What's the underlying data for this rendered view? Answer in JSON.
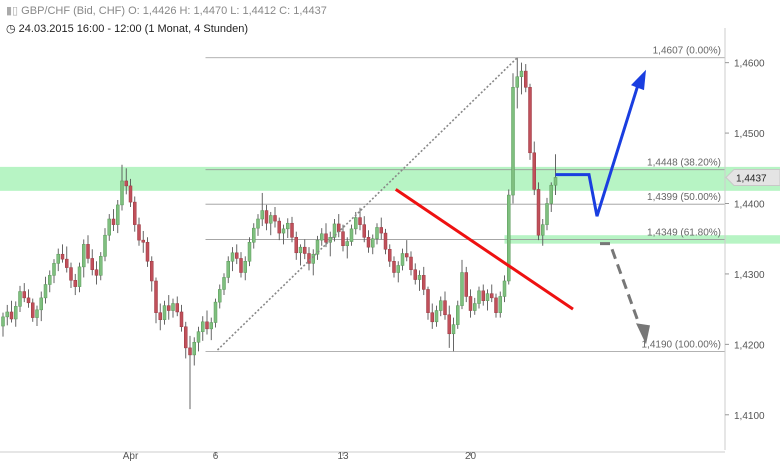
{
  "header": {
    "instrument_line": "GBP/CHF (Bid, CHF)  O: 1,4426  H: 1,4470  L: 1,4412  C: 1,4437",
    "period_line": "24.03.2015 16:00 - 12:00 (1 Monat, 4 Stunden)",
    "logo_icon": "candlestick-icon",
    "clock_icon": "clock-icon"
  },
  "current_price_label": "1,4437",
  "colors": {
    "bull": "#7fbf7f",
    "bear": "#c0505a",
    "wick": "#555555",
    "zone": "#9ff0b0",
    "trend": "#ee1111",
    "blue_arrow": "#1a3ee0",
    "grey_arrow": "#777777"
  },
  "chart_data": {
    "type": "candlestick",
    "ylim": [
      1.405,
      1.4635
    ],
    "y_ticks": [
      {
        "value": 1.41,
        "label": "1,4100"
      },
      {
        "value": 1.42,
        "label": "1,4200"
      },
      {
        "value": 1.43,
        "label": "1,4300"
      },
      {
        "value": 1.44,
        "label": "1,4400"
      },
      {
        "value": 1.45,
        "label": "1,4500"
      },
      {
        "value": 1.46,
        "label": "1,4600"
      }
    ],
    "x_ticks": [
      {
        "index": 30,
        "label": "Apr"
      },
      {
        "index": 50,
        "label": "6"
      },
      {
        "index": 80,
        "label": "13"
      },
      {
        "index": 110,
        "label": "20"
      }
    ],
    "fib_levels": [
      {
        "value": 1.4607,
        "label": "1,4607 (0.00%)"
      },
      {
        "value": 1.4448,
        "label": "1,4448 (38.20%)"
      },
      {
        "value": 1.4399,
        "label": "1,4399 (50.00%)"
      },
      {
        "value": 1.4349,
        "label": "1,4349 (61.80%)"
      },
      {
        "value": 1.419,
        "label": "1,4190 (100.00%)"
      }
    ],
    "zones": [
      {
        "from": 1.4418,
        "to": 1.4452,
        "extent": "full"
      },
      {
        "from": 1.4343,
        "to": 1.4355,
        "extent": "recent"
      }
    ],
    "candles": [
      [
        1.4226,
        1.4245,
        1.4211,
        1.4239
      ],
      [
        1.4239,
        1.4256,
        1.4227,
        1.4246
      ],
      [
        1.4246,
        1.4262,
        1.4231,
        1.4236
      ],
      [
        1.4236,
        1.4261,
        1.4225,
        1.4254
      ],
      [
        1.4254,
        1.4283,
        1.4246,
        1.4275
      ],
      [
        1.4275,
        1.4287,
        1.426,
        1.4266
      ],
      [
        1.4266,
        1.4278,
        1.4252,
        1.4259
      ],
      [
        1.4259,
        1.4265,
        1.4232,
        1.4238
      ],
      [
        1.4238,
        1.4255,
        1.4226,
        1.4249
      ],
      [
        1.4249,
        1.4275,
        1.4233,
        1.4266
      ],
      [
        1.4266,
        1.4296,
        1.4258,
        1.4285
      ],
      [
        1.4285,
        1.4305,
        1.4274,
        1.4298
      ],
      [
        1.4298,
        1.4321,
        1.4287,
        1.4315
      ],
      [
        1.4315,
        1.4336,
        1.4304,
        1.4328
      ],
      [
        1.4328,
        1.4342,
        1.4316,
        1.4321
      ],
      [
        1.4321,
        1.4339,
        1.4302,
        1.4309
      ],
      [
        1.4309,
        1.4316,
        1.428,
        1.4291
      ],
      [
        1.4291,
        1.43,
        1.427,
        1.4282
      ],
      [
        1.4282,
        1.4316,
        1.4274,
        1.431
      ],
      [
        1.431,
        1.4349,
        1.4295,
        1.4342
      ],
      [
        1.4342,
        1.4355,
        1.4315,
        1.4322
      ],
      [
        1.4322,
        1.4335,
        1.4298,
        1.4306
      ],
      [
        1.4306,
        1.4318,
        1.4285,
        1.4298
      ],
      [
        1.4298,
        1.4331,
        1.4291,
        1.4325
      ],
      [
        1.4325,
        1.4365,
        1.4318,
        1.4355
      ],
      [
        1.4355,
        1.4385,
        1.4347,
        1.4378
      ],
      [
        1.4378,
        1.4392,
        1.4361,
        1.437
      ],
      [
        1.437,
        1.4405,
        1.4358,
        1.4398
      ],
      [
        1.4398,
        1.4455,
        1.439,
        1.4432
      ],
      [
        1.4432,
        1.445,
        1.4413,
        1.4425
      ],
      [
        1.4425,
        1.4435,
        1.4395,
        1.4402
      ],
      [
        1.4402,
        1.441,
        1.436,
        1.437
      ],
      [
        1.437,
        1.438,
        1.434,
        1.4348
      ],
      [
        1.4348,
        1.4361,
        1.433,
        1.4345
      ],
      [
        1.4345,
        1.4352,
        1.431,
        1.4318
      ],
      [
        1.4318,
        1.4325,
        1.4275,
        1.429
      ],
      [
        1.429,
        1.4295,
        1.423,
        1.4245
      ],
      [
        1.4245,
        1.4258,
        1.422,
        1.4235
      ],
      [
        1.4235,
        1.4262,
        1.4228,
        1.4255
      ],
      [
        1.4255,
        1.427,
        1.4235,
        1.4248
      ],
      [
        1.4248,
        1.4265,
        1.4238,
        1.4258
      ],
      [
        1.4258,
        1.4268,
        1.424,
        1.4246
      ],
      [
        1.4246,
        1.4256,
        1.4218,
        1.4225
      ],
      [
        1.4225,
        1.4232,
        1.418,
        1.4195
      ],
      [
        1.4195,
        1.4212,
        1.4108,
        1.4185
      ],
      [
        1.4185,
        1.421,
        1.417,
        1.4203
      ],
      [
        1.4203,
        1.4225,
        1.419,
        1.4218
      ],
      [
        1.4218,
        1.424,
        1.4205,
        1.4232
      ],
      [
        1.4232,
        1.4248,
        1.4214,
        1.4222
      ],
      [
        1.4222,
        1.4238,
        1.4206,
        1.4231
      ],
      [
        1.4231,
        1.4265,
        1.4224,
        1.426
      ],
      [
        1.426,
        1.4285,
        1.4251,
        1.4278
      ],
      [
        1.4278,
        1.4301,
        1.427,
        1.4295
      ],
      [
        1.4295,
        1.4325,
        1.4287,
        1.4318
      ],
      [
        1.4318,
        1.4338,
        1.4304,
        1.433
      ],
      [
        1.433,
        1.4342,
        1.4314,
        1.4322
      ],
      [
        1.4322,
        1.4331,
        1.4295,
        1.4302
      ],
      [
        1.4302,
        1.4325,
        1.4291,
        1.4318
      ],
      [
        1.4318,
        1.4352,
        1.4311,
        1.4345
      ],
      [
        1.4345,
        1.4372,
        1.4336,
        1.4365
      ],
      [
        1.4365,
        1.4385,
        1.4354,
        1.4378
      ],
      [
        1.4378,
        1.4415,
        1.4368,
        1.439
      ],
      [
        1.439,
        1.4398,
        1.4362,
        1.4372
      ],
      [
        1.4372,
        1.4388,
        1.4355,
        1.4383
      ],
      [
        1.4383,
        1.4395,
        1.4366,
        1.4375
      ],
      [
        1.4375,
        1.438,
        1.4348,
        1.4358
      ],
      [
        1.4358,
        1.437,
        1.4342,
        1.4364
      ],
      [
        1.4364,
        1.4379,
        1.4351,
        1.4372
      ],
      [
        1.4372,
        1.4381,
        1.4345,
        1.4352
      ],
      [
        1.4352,
        1.436,
        1.432,
        1.433
      ],
      [
        1.433,
        1.4342,
        1.4312,
        1.4338
      ],
      [
        1.4338,
        1.4349,
        1.4321,
        1.4329
      ],
      [
        1.4329,
        1.4338,
        1.4305,
        1.4315
      ],
      [
        1.4315,
        1.4335,
        1.4298,
        1.4328
      ],
      [
        1.4328,
        1.4354,
        1.432,
        1.4348
      ],
      [
        1.4348,
        1.4365,
        1.434,
        1.4357
      ],
      [
        1.4357,
        1.4372,
        1.4338,
        1.4345
      ],
      [
        1.4345,
        1.436,
        1.4325,
        1.4352
      ],
      [
        1.4352,
        1.4378,
        1.4346,
        1.4371
      ],
      [
        1.4371,
        1.4385,
        1.4352,
        1.436
      ],
      [
        1.436,
        1.437,
        1.4332,
        1.434
      ],
      [
        1.434,
        1.4352,
        1.4322,
        1.4346
      ],
      [
        1.4346,
        1.437,
        1.434,
        1.4364
      ],
      [
        1.4364,
        1.4388,
        1.4356,
        1.438
      ],
      [
        1.438,
        1.4394,
        1.4362,
        1.437
      ],
      [
        1.437,
        1.4382,
        1.4345,
        1.4352
      ],
      [
        1.4352,
        1.4362,
        1.433,
        1.4338
      ],
      [
        1.4338,
        1.4356,
        1.4328,
        1.435
      ],
      [
        1.435,
        1.4372,
        1.4342,
        1.4366
      ],
      [
        1.4366,
        1.438,
        1.4349,
        1.4358
      ],
      [
        1.4358,
        1.4364,
        1.4328,
        1.4335
      ],
      [
        1.4335,
        1.4342,
        1.431,
        1.4318
      ],
      [
        1.4318,
        1.4325,
        1.4295,
        1.4302
      ],
      [
        1.4302,
        1.4318,
        1.4288,
        1.4312
      ],
      [
        1.4312,
        1.4336,
        1.4305,
        1.4329
      ],
      [
        1.4329,
        1.4348,
        1.4318,
        1.4324
      ],
      [
        1.4324,
        1.4332,
        1.4298,
        1.4306
      ],
      [
        1.4306,
        1.4315,
        1.4285,
        1.4292
      ],
      [
        1.4292,
        1.4305,
        1.4276,
        1.4298
      ],
      [
        1.4298,
        1.431,
        1.427,
        1.4278
      ],
      [
        1.4278,
        1.4282,
        1.4235,
        1.4245
      ],
      [
        1.4245,
        1.4258,
        1.4222,
        1.4232
      ],
      [
        1.4232,
        1.4255,
        1.4225,
        1.4248
      ],
      [
        1.4248,
        1.4268,
        1.424,
        1.4262
      ],
      [
        1.4262,
        1.4275,
        1.4235,
        1.4242
      ],
      [
        1.4242,
        1.4255,
        1.4195,
        1.4215
      ],
      [
        1.4215,
        1.4238,
        1.419,
        1.4228
      ],
      [
        1.4228,
        1.4262,
        1.4222,
        1.4255
      ],
      [
        1.4255,
        1.432,
        1.425,
        1.4302
      ],
      [
        1.4302,
        1.431,
        1.426,
        1.4268
      ],
      [
        1.4268,
        1.4278,
        1.4238,
        1.4248
      ],
      [
        1.4248,
        1.4266,
        1.4242,
        1.4258
      ],
      [
        1.4258,
        1.4282,
        1.4251,
        1.4276
      ],
      [
        1.4276,
        1.4285,
        1.4255,
        1.4262
      ],
      [
        1.4262,
        1.4278,
        1.4248,
        1.4272
      ],
      [
        1.4272,
        1.4285,
        1.426,
        1.4266
      ],
      [
        1.4266,
        1.4272,
        1.4238,
        1.4245
      ],
      [
        1.4245,
        1.4275,
        1.4238,
        1.4268
      ],
      [
        1.4268,
        1.4298,
        1.426,
        1.429
      ],
      [
        1.429,
        1.442,
        1.4285,
        1.4412
      ],
      [
        1.4412,
        1.4585,
        1.44,
        1.4565
      ],
      [
        1.4565,
        1.4607,
        1.4535,
        1.458
      ],
      [
        1.458,
        1.46,
        1.4555,
        1.4588
      ],
      [
        1.4588,
        1.4598,
        1.4558,
        1.4565
      ],
      [
        1.4565,
        1.457,
        1.4462,
        1.4472
      ],
      [
        1.4472,
        1.4488,
        1.4412,
        1.442
      ],
      [
        1.442,
        1.443,
        1.4348,
        1.4355
      ],
      [
        1.4355,
        1.4378,
        1.434,
        1.437
      ],
      [
        1.437,
        1.4408,
        1.4362,
        1.44
      ],
      [
        1.44,
        1.443,
        1.4388,
        1.4426
      ],
      [
        1.4426,
        1.447,
        1.4412,
        1.4437
      ]
    ]
  }
}
